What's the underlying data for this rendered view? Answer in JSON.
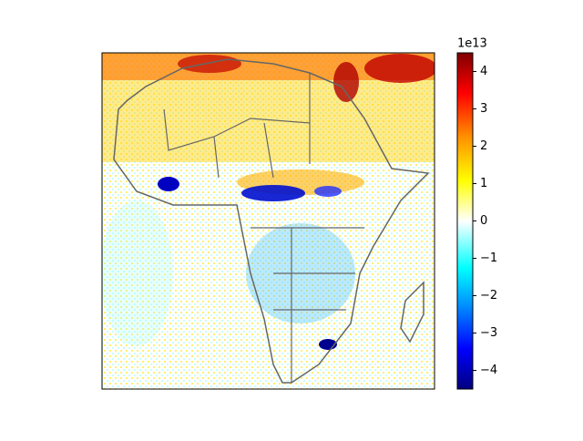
{
  "map": {
    "colorbar": {
      "offset_label": "1e13",
      "lim": [
        -4.5,
        4.5
      ],
      "ticks": [
        {
          "value": -4,
          "label": "−4"
        },
        {
          "value": -3,
          "label": "−3"
        },
        {
          "value": -2,
          "label": "−2"
        },
        {
          "value": -1,
          "label": "−1"
        },
        0,
        1,
        2,
        3,
        4
      ]
    }
  }
}
